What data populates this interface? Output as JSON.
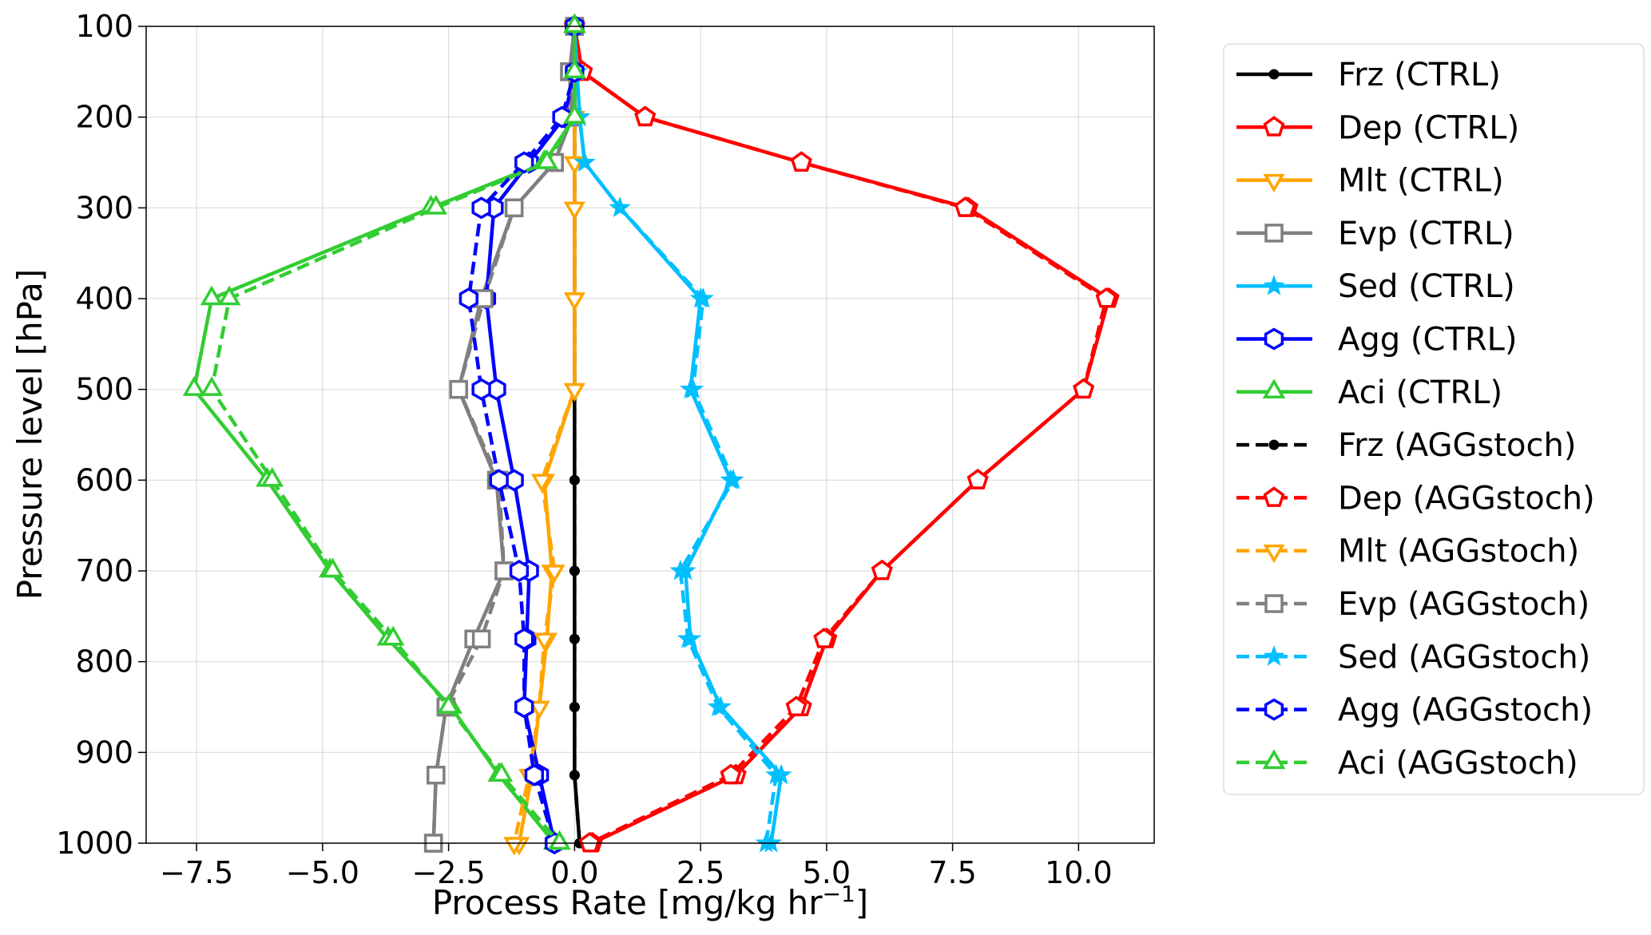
{
  "chart_data": {
    "type": "line",
    "title": "",
    "xlabel": "Process Rate [mg/kg hr",
    "xlabel_sup": "−1",
    "xlabel_end": "]",
    "ylabel": "Pressure level [hPa]",
    "xlim": [
      -8.5,
      11.5
    ],
    "ylim": [
      1000,
      100
    ],
    "grid": true,
    "legend_placement": "outside-right",
    "xticks": [
      -7.5,
      -5.0,
      -2.5,
      0.0,
      2.5,
      5.0,
      7.5,
      10.0
    ],
    "xtick_labels": [
      "−7.5",
      "−5.0",
      "−2.5",
      "0.0",
      "2.5",
      "5.0",
      "7.5",
      "10.0"
    ],
    "yticks": [
      100,
      200,
      300,
      400,
      500,
      600,
      700,
      800,
      900,
      1000
    ],
    "ytick_labels": [
      "100",
      "200",
      "300",
      "400",
      "500",
      "600",
      "700",
      "800",
      "900",
      "1000"
    ],
    "pressure": [
      100,
      150,
      200,
      250,
      300,
      400,
      500,
      600,
      700,
      775,
      850,
      925,
      1000
    ],
    "series": [
      {
        "name": "Frz (CTRL)",
        "color": "#000000",
        "marker": "circle",
        "dash": false,
        "values": [
          0,
          0,
          0,
          0,
          0,
          0,
          0,
          0,
          0,
          0,
          0,
          0,
          0.1
        ]
      },
      {
        "name": "Dep (CTRL)",
        "color": "#ff0000",
        "marker": "pentagon",
        "dash": false,
        "values": [
          0,
          0.15,
          1.4,
          4.5,
          7.8,
          10.6,
          10.1,
          8.0,
          6.1,
          5.0,
          4.5,
          3.2,
          0.35
        ]
      },
      {
        "name": "Mlt (CTRL)",
        "color": "#ffa500",
        "marker": "triangle-down",
        "dash": false,
        "values": [
          0,
          0,
          0,
          0,
          0,
          0,
          0,
          -0.6,
          -0.45,
          -0.55,
          -0.7,
          -0.85,
          -1.1
        ]
      },
      {
        "name": "Evp (CTRL)",
        "color": "#808080",
        "marker": "square",
        "dash": false,
        "values": [
          0,
          -0.1,
          -0.05,
          -0.4,
          -1.2,
          -1.85,
          -2.3,
          -1.55,
          -1.4,
          -2.0,
          -2.55,
          -2.75,
          -2.8
        ]
      },
      {
        "name": "Sed (CTRL)",
        "color": "#00bfff",
        "marker": "star",
        "dash": false,
        "values": [
          0,
          0.05,
          0.1,
          0.2,
          0.9,
          2.5,
          2.3,
          3.1,
          2.2,
          2.3,
          2.9,
          4.1,
          3.9
        ]
      },
      {
        "name": "Agg (CTRL)",
        "color": "#0000ff",
        "marker": "hexagon",
        "dash": false,
        "values": [
          0,
          0,
          -0.2,
          -0.9,
          -1.6,
          -1.75,
          -1.55,
          -1.2,
          -0.9,
          -0.95,
          -1.0,
          -0.7,
          -0.4
        ]
      },
      {
        "name": "Aci (CTRL)",
        "color": "#32cd32",
        "marker": "triangle-up",
        "dash": false,
        "values": [
          0,
          0,
          0,
          -0.6,
          -2.85,
          -7.2,
          -7.55,
          -6.1,
          -4.85,
          -3.7,
          -2.45,
          -1.5,
          -0.4
        ]
      },
      {
        "name": "Frz (AGGstoch)",
        "color": "#000000",
        "marker": "circle",
        "dash": true,
        "values": [
          0,
          0,
          0,
          0,
          0,
          0,
          0,
          0,
          0,
          0,
          0,
          0,
          0.1
        ]
      },
      {
        "name": "Dep (AGGstoch)",
        "color": "#ff0000",
        "marker": "pentagon",
        "dash": true,
        "values": [
          0,
          0.15,
          1.4,
          4.5,
          7.75,
          10.55,
          10.1,
          8.0,
          6.1,
          4.95,
          4.4,
          3.1,
          0.3
        ]
      },
      {
        "name": "Mlt (AGGstoch)",
        "color": "#ffa500",
        "marker": "triangle-down",
        "dash": true,
        "values": [
          0,
          0,
          0,
          0,
          0,
          0,
          0,
          -0.65,
          -0.4,
          -0.6,
          -0.7,
          -0.9,
          -1.2
        ]
      },
      {
        "name": "Evp (AGGstoch)",
        "color": "#808080",
        "marker": "square",
        "dash": true,
        "values": [
          0,
          -0.1,
          -0.05,
          -0.4,
          -1.2,
          -1.8,
          -2.3,
          -1.5,
          -1.4,
          -1.85,
          -2.55,
          -2.75,
          -2.8
        ]
      },
      {
        "name": "Sed (AGGstoch)",
        "color": "#00bfff",
        "marker": "star",
        "dash": true,
        "values": [
          0,
          0.05,
          0.1,
          0.2,
          0.9,
          2.55,
          2.35,
          3.15,
          2.1,
          2.25,
          2.85,
          4.0,
          3.8
        ]
      },
      {
        "name": "Agg (AGGstoch)",
        "color": "#0000ff",
        "marker": "hexagon",
        "dash": true,
        "values": [
          0,
          0,
          -0.25,
          -1.0,
          -1.85,
          -2.1,
          -1.85,
          -1.5,
          -1.1,
          -1.0,
          -1.0,
          -0.8,
          -0.4
        ]
      },
      {
        "name": "Aci (AGGstoch)",
        "color": "#32cd32",
        "marker": "triangle-up",
        "dash": true,
        "values": [
          0,
          0,
          0,
          -0.55,
          -2.75,
          -6.85,
          -7.2,
          -6.0,
          -4.8,
          -3.6,
          -2.5,
          -1.45,
          -0.3
        ]
      }
    ]
  }
}
